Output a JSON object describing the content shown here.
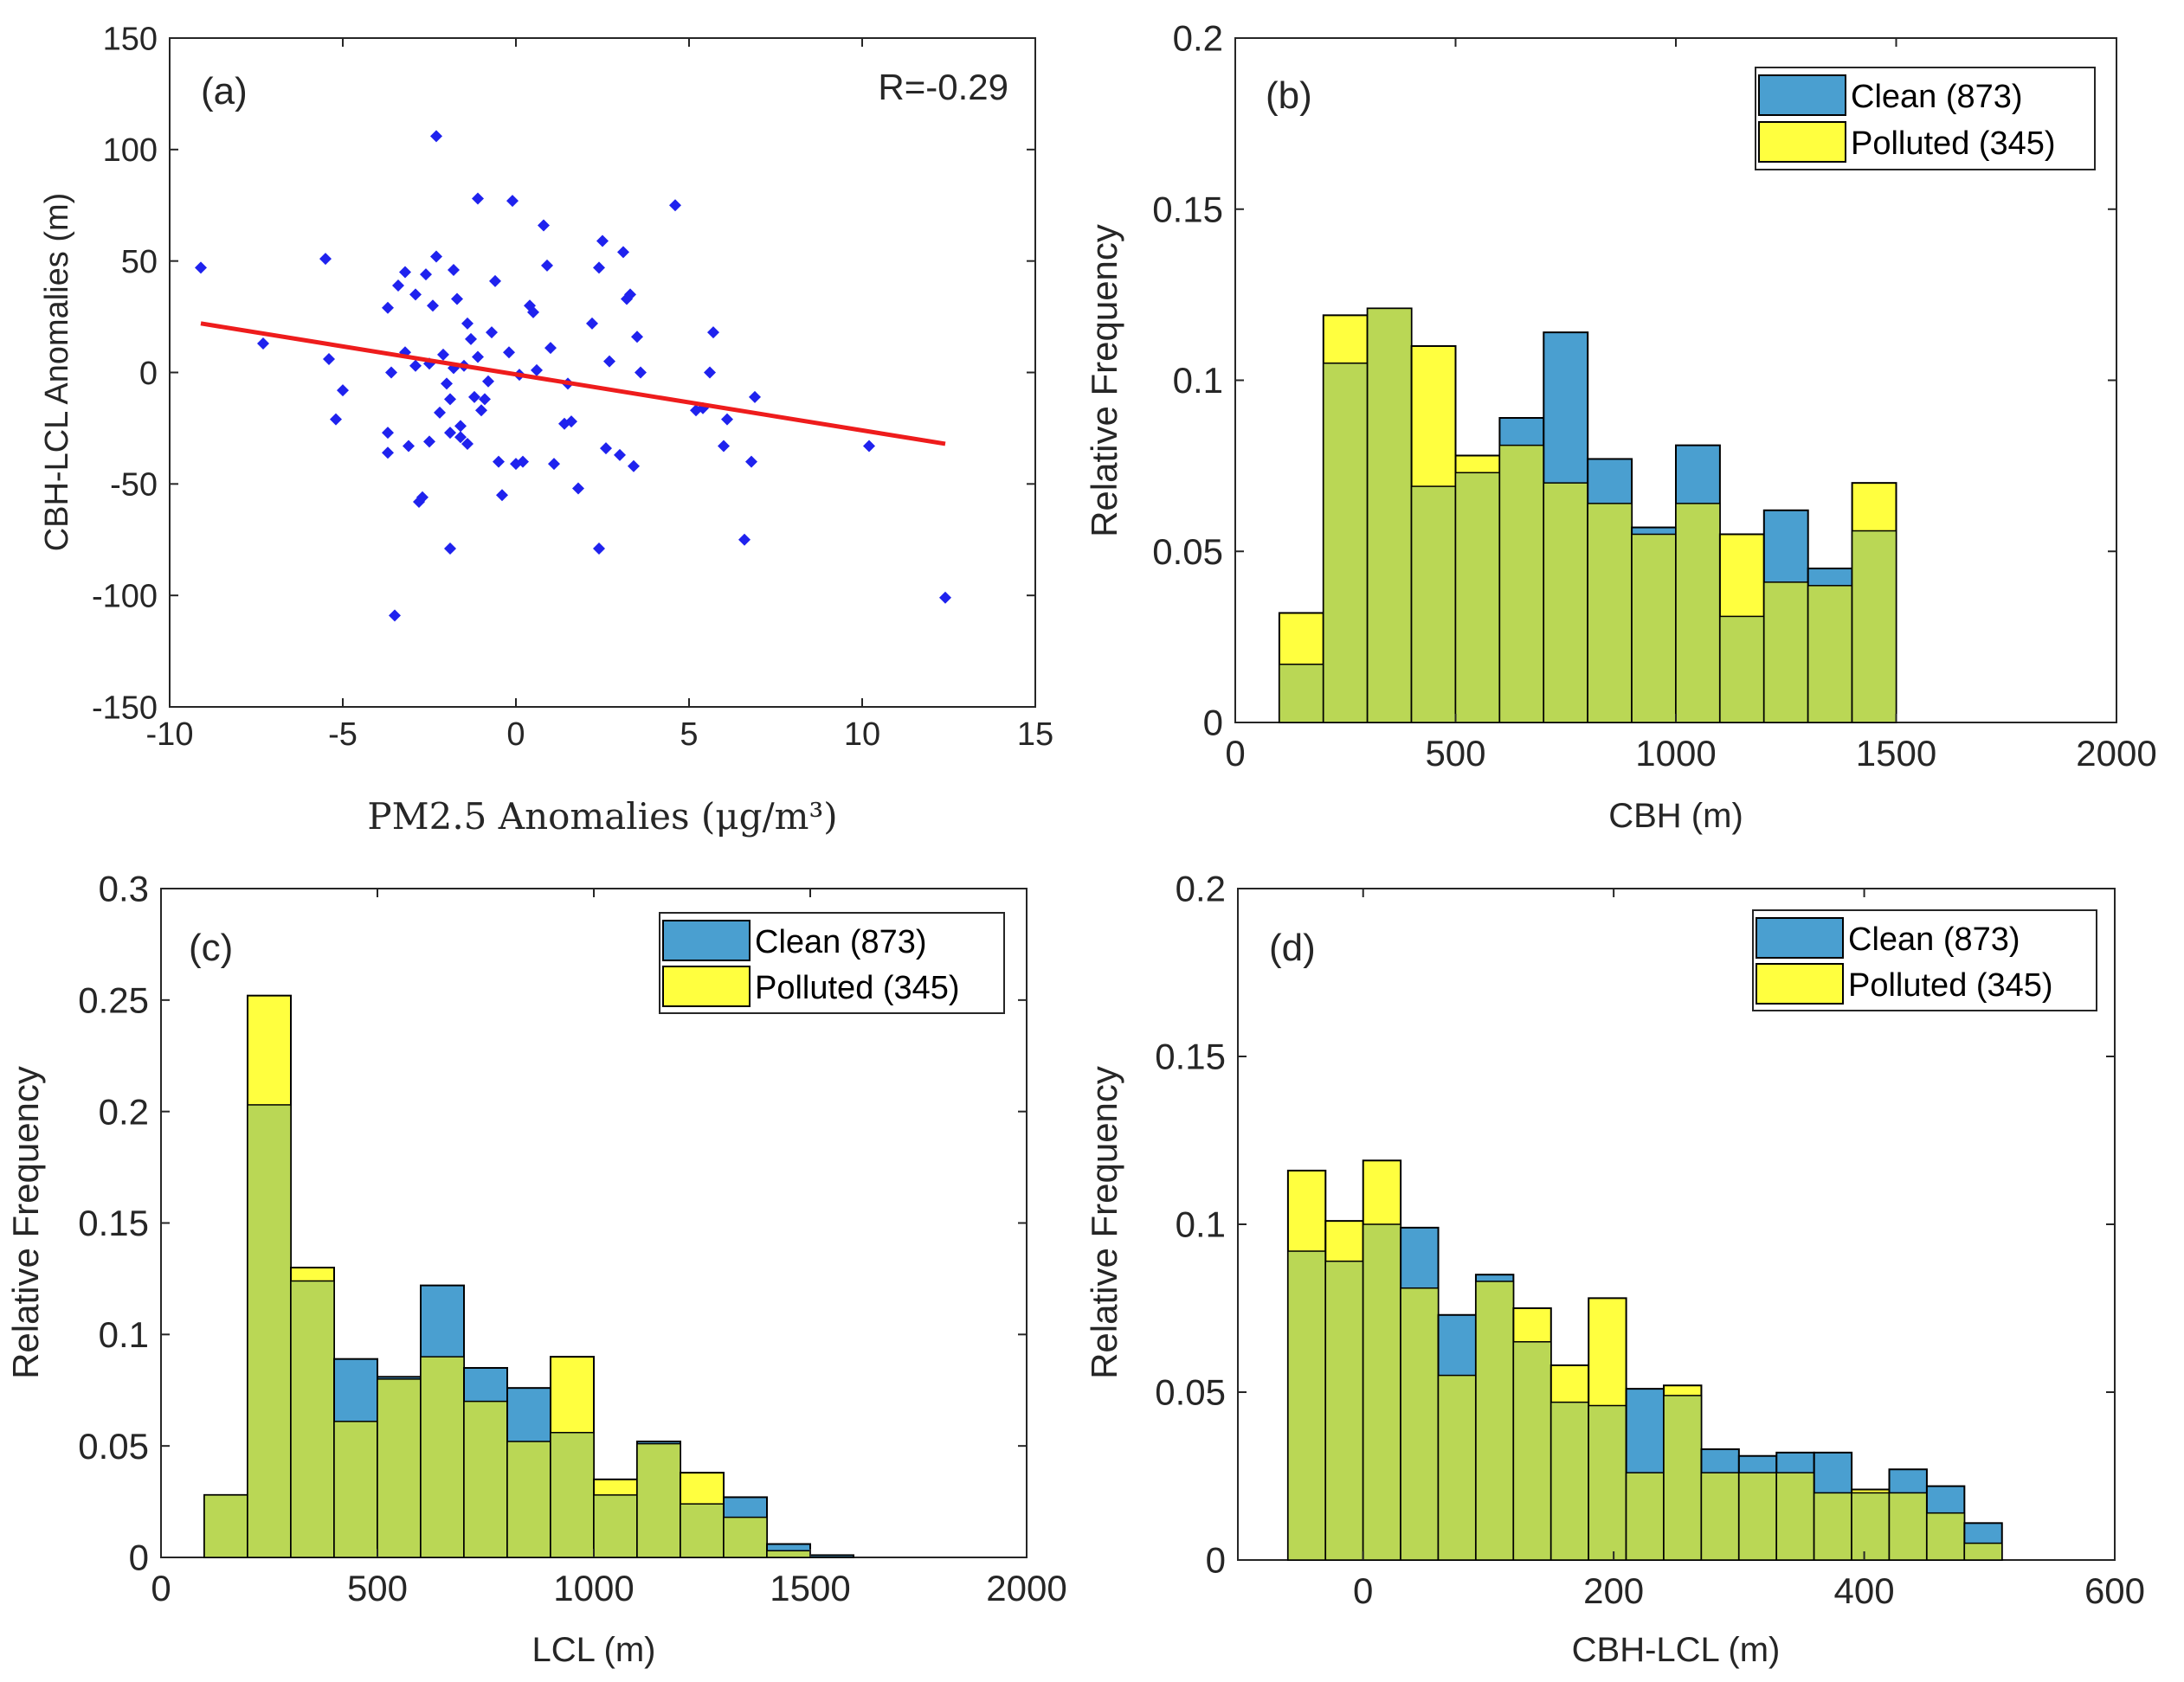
{
  "colors": {
    "clean_fill": "#4a9fd0",
    "polluted_fill": "#ffff3f",
    "overlap_fill": "#bad755",
    "scatter_point": "#1f22ee",
    "fit_line": "#ee1c1c",
    "axis": "#262626"
  },
  "chart_data": [
    {
      "id": "a",
      "type": "scatter",
      "panel_label": "(a)",
      "annotation": "R=-0.29",
      "xlabel": "PM2.5 Anomalies (μg/m³)",
      "ylabel": "CBH-LCL Anomalies (m)",
      "xlim": [
        -10,
        15
      ],
      "ylim": [
        -150,
        150
      ],
      "xticks": [
        -10,
        -5,
        0,
        5,
        10,
        15
      ],
      "yticks": [
        -150,
        -100,
        -50,
        0,
        50,
        100,
        150
      ],
      "points": [
        [
          -9.1,
          47
        ],
        [
          -7.3,
          13
        ],
        [
          -5.5,
          51
        ],
        [
          -5.4,
          6
        ],
        [
          -5.2,
          -21
        ],
        [
          -5.0,
          -8
        ],
        [
          -3.7,
          29
        ],
        [
          -3.7,
          -36
        ],
        [
          -3.7,
          -27
        ],
        [
          -3.6,
          0
        ],
        [
          -3.5,
          -109
        ],
        [
          -3.4,
          39
        ],
        [
          -3.2,
          45
        ],
        [
          -3.2,
          9
        ],
        [
          -3.1,
          -33
        ],
        [
          -2.9,
          35
        ],
        [
          -2.9,
          3
        ],
        [
          -2.8,
          -58
        ],
        [
          -2.7,
          -56
        ],
        [
          -2.6,
          44
        ],
        [
          -2.5,
          -31
        ],
        [
          -2.5,
          4
        ],
        [
          -2.4,
          30
        ],
        [
          -2.3,
          106
        ],
        [
          -2.3,
          52
        ],
        [
          -2.2,
          -18
        ],
        [
          -2.1,
          8
        ],
        [
          -2.0,
          -5
        ],
        [
          -1.9,
          -12
        ],
        [
          -1.9,
          -27
        ],
        [
          -1.9,
          -79
        ],
        [
          -1.8,
          2
        ],
        [
          -1.8,
          46
        ],
        [
          -1.7,
          33
        ],
        [
          -1.6,
          -24
        ],
        [
          -1.6,
          -29
        ],
        [
          -1.5,
          3
        ],
        [
          -1.4,
          -32
        ],
        [
          -1.4,
          22
        ],
        [
          -1.3,
          15
        ],
        [
          -1.2,
          -11
        ],
        [
          -1.1,
          78
        ],
        [
          -1.1,
          7
        ],
        [
          -1.0,
          -17
        ],
        [
          -0.9,
          -12
        ],
        [
          -0.8,
          -4
        ],
        [
          -0.7,
          18
        ],
        [
          -0.6,
          41
        ],
        [
          -0.5,
          -40
        ],
        [
          -0.4,
          -55
        ],
        [
          -0.2,
          9
        ],
        [
          -0.1,
          77
        ],
        [
          0.0,
          -41
        ],
        [
          0.1,
          -1
        ],
        [
          0.2,
          -40
        ],
        [
          0.4,
          30
        ],
        [
          0.5,
          27
        ],
        [
          0.6,
          1
        ],
        [
          0.8,
          66
        ],
        [
          0.9,
          48
        ],
        [
          1.0,
          11
        ],
        [
          1.1,
          -41
        ],
        [
          1.4,
          -23
        ],
        [
          1.5,
          -5
        ],
        [
          1.6,
          -22
        ],
        [
          1.8,
          -52
        ],
        [
          2.2,
          22
        ],
        [
          2.4,
          -79
        ],
        [
          2.4,
          47
        ],
        [
          2.5,
          59
        ],
        [
          2.6,
          -34
        ],
        [
          2.7,
          5
        ],
        [
          3.0,
          -37
        ],
        [
          3.1,
          54
        ],
        [
          3.2,
          33
        ],
        [
          3.3,
          35
        ],
        [
          3.4,
          -42
        ],
        [
          3.5,
          16
        ],
        [
          3.6,
          0
        ],
        [
          4.6,
          75
        ],
        [
          5.2,
          -17
        ],
        [
          5.4,
          -16
        ],
        [
          5.6,
          0
        ],
        [
          5.7,
          18
        ],
        [
          6.0,
          -33
        ],
        [
          6.1,
          -21
        ],
        [
          6.6,
          -75
        ],
        [
          6.8,
          -40
        ],
        [
          6.9,
          -11
        ],
        [
          10.2,
          -33
        ],
        [
          12.4,
          -101
        ]
      ],
      "fit_line": {
        "x": [
          -9.1,
          12.4
        ],
        "y": [
          22,
          -32
        ]
      }
    },
    {
      "id": "b",
      "type": "bar",
      "panel_label": "(b)",
      "xlabel": "CBH (m)",
      "ylabel": "Relative Frequency",
      "xlim": [
        0,
        2000
      ],
      "ylim": [
        0,
        0.2
      ],
      "xticks": [
        0,
        500,
        1000,
        1500,
        2000
      ],
      "yticks": [
        0,
        0.05,
        0.1,
        0.15,
        0.2
      ],
      "bin_edges": [
        100,
        200,
        300,
        400,
        500,
        600,
        700,
        800,
        900,
        1000,
        1100,
        1200,
        1300,
        1400,
        1500
      ],
      "series": [
        {
          "name": "Clean (873)",
          "values": [
            0.017,
            0.105,
            0.121,
            0.069,
            0.073,
            0.089,
            0.114,
            0.077,
            0.057,
            0.081,
            0.031,
            0.062,
            0.045,
            0.056
          ]
        },
        {
          "name": "Polluted (345)",
          "values": [
            0.032,
            0.119,
            0.121,
            0.11,
            0.078,
            0.081,
            0.07,
            0.064,
            0.055,
            0.064,
            0.055,
            0.041,
            0.04,
            0.07
          ]
        }
      ],
      "legend": [
        "Clean (873)",
        "Polluted (345)"
      ]
    },
    {
      "id": "c",
      "type": "bar",
      "panel_label": "(c)",
      "xlabel": "LCL (m)",
      "ylabel": "Relative Frequency",
      "xlim": [
        0,
        2000
      ],
      "ylim": [
        0,
        0.3
      ],
      "xticks": [
        0,
        500,
        1000,
        1500,
        2000
      ],
      "yticks": [
        0,
        0.05,
        0.1,
        0.15,
        0.2,
        0.25,
        0.3
      ],
      "bin_edges": [
        100,
        200,
        300,
        400,
        500,
        600,
        700,
        800,
        900,
        1000,
        1100,
        1200,
        1300,
        1400,
        1500,
        1600
      ],
      "series": [
        {
          "name": "Clean (873)",
          "values": [
            0.028,
            0.203,
            0.124,
            0.089,
            0.081,
            0.122,
            0.085,
            0.076,
            0.056,
            0.028,
            0.052,
            0.024,
            0.027,
            0.006,
            0.001
          ]
        },
        {
          "name": "Polluted (345)",
          "values": [
            0.028,
            0.252,
            0.13,
            0.061,
            0.08,
            0.09,
            0.07,
            0.052,
            0.09,
            0.035,
            0.051,
            0.038,
            0.018,
            0.003,
            0.0
          ]
        }
      ],
      "legend": [
        "Clean (873)",
        "Polluted (345)"
      ]
    },
    {
      "id": "d",
      "type": "bar",
      "panel_label": "(d)",
      "xlabel": "CBH-LCL (m)",
      "ylabel": "Relative Frequency",
      "xlim": [
        -100,
        600
      ],
      "ylim": [
        0,
        0.2
      ],
      "xticks": [
        0,
        200,
        400,
        600
      ],
      "yticks": [
        0,
        0.05,
        0.1,
        0.15,
        0.2
      ],
      "bin_edges": [
        -60,
        -30,
        0,
        30,
        60,
        90,
        120,
        150,
        180,
        210,
        240,
        270,
        300,
        330,
        360,
        390,
        420,
        450,
        480,
        510
      ],
      "series": [
        {
          "name": "Clean (873)",
          "values": [
            0.092,
            0.089,
            0.1,
            0.099,
            0.073,
            0.085,
            0.065,
            0.047,
            0.046,
            0.051,
            0.049,
            0.033,
            0.031,
            0.032,
            0.032,
            0.02,
            0.027,
            0.022,
            0.011
          ]
        },
        {
          "name": "Polluted (345)",
          "values": [
            0.116,
            0.101,
            0.119,
            0.081,
            0.055,
            0.083,
            0.075,
            0.058,
            0.078,
            0.026,
            0.052,
            0.026,
            0.026,
            0.026,
            0.02,
            0.021,
            0.02,
            0.014,
            0.005
          ]
        }
      ],
      "legend": [
        "Clean (873)",
        "Polluted (345)"
      ]
    }
  ]
}
